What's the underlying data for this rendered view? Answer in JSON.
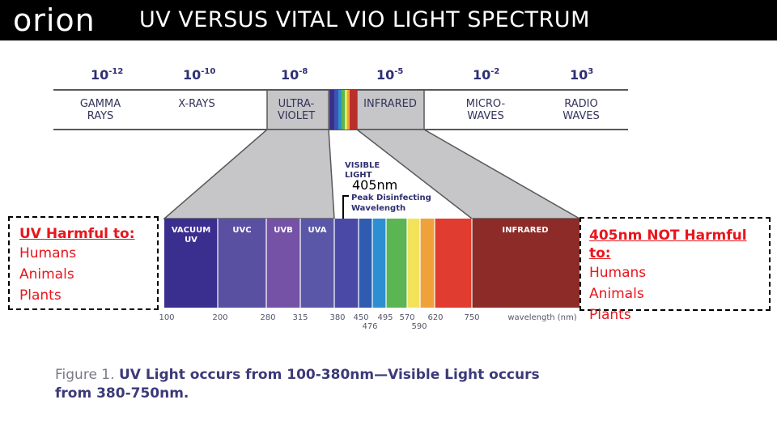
{
  "header": {
    "logo_text": "orion",
    "title": "UV VERSUS VITAL VIO LIGHT SPECTRUM"
  },
  "spectrum": {
    "bands": [
      {
        "exponent": "10",
        "power": "-12",
        "label": [
          "GAMMA",
          "RAYS"
        ]
      },
      {
        "exponent": "10",
        "power": "-10",
        "label": [
          "X-RAYS"
        ]
      },
      {
        "exponent": "10",
        "power": "-8",
        "label": [
          "ULTRA-",
          "VIOLET"
        ]
      },
      {
        "exponent": "10",
        "power": "-5",
        "label": [
          "INFRARED"
        ]
      },
      {
        "exponent": "10",
        "power": "-2",
        "label": [
          "MICRO-",
          "WAVES"
        ]
      },
      {
        "exponent": "10",
        "power": "3",
        "label": [
          "RADIO",
          "WAVES"
        ]
      }
    ],
    "visible_label": [
      "VISIBLE",
      "LIGHT"
    ],
    "peak_value": "405nm",
    "peak_label": [
      "Peak Disinfecting",
      "Wavelength"
    ],
    "segments": [
      {
        "label": [
          "VACUUM",
          "UV"
        ]
      },
      {
        "label": [
          "UVC"
        ]
      },
      {
        "label": [
          "UVB"
        ]
      },
      {
        "label": [
          "UVA"
        ]
      },
      {
        "label": []
      },
      {
        "label": []
      },
      {
        "label": []
      },
      {
        "label": []
      },
      {
        "label": []
      },
      {
        "label": []
      },
      {
        "label": []
      },
      {
        "label": [
          "INFRARED"
        ]
      }
    ],
    "ticks": [
      "100",
      "200",
      "280",
      "315",
      "380",
      "450",
      "476",
      "495",
      "570",
      "590",
      "620",
      "750"
    ],
    "axis_label": "wavelength (nm)",
    "colors": {
      "gray": "#c6c6c8",
      "outline": "#58585a",
      "vacuum_uv": "#3a2f8e",
      "uvc": "#5a50a2",
      "uvb": "#7652a6",
      "uva": "#5b57a8",
      "violet": "#4a4aa6",
      "blue": "#2f5bb0",
      "cyan": "#2e8fd0",
      "green": "#5bb552",
      "yellow": "#f2e35a",
      "orange": "#f0a23a",
      "red": "#e03c2f",
      "infrared": "#8c2b27"
    }
  },
  "harmful_box": {
    "title": "UV Harmful to:",
    "items": [
      "Humans",
      "Animals",
      "Plants"
    ]
  },
  "safe_box": {
    "title": "405nm NOT Harmful to:",
    "items": [
      "Humans",
      "Animals",
      "Plants"
    ]
  },
  "caption": {
    "lead": "Figure 1.",
    "text": "UV Light occurs from 100-380nm—Visible Light occurs from 380-750nm."
  }
}
